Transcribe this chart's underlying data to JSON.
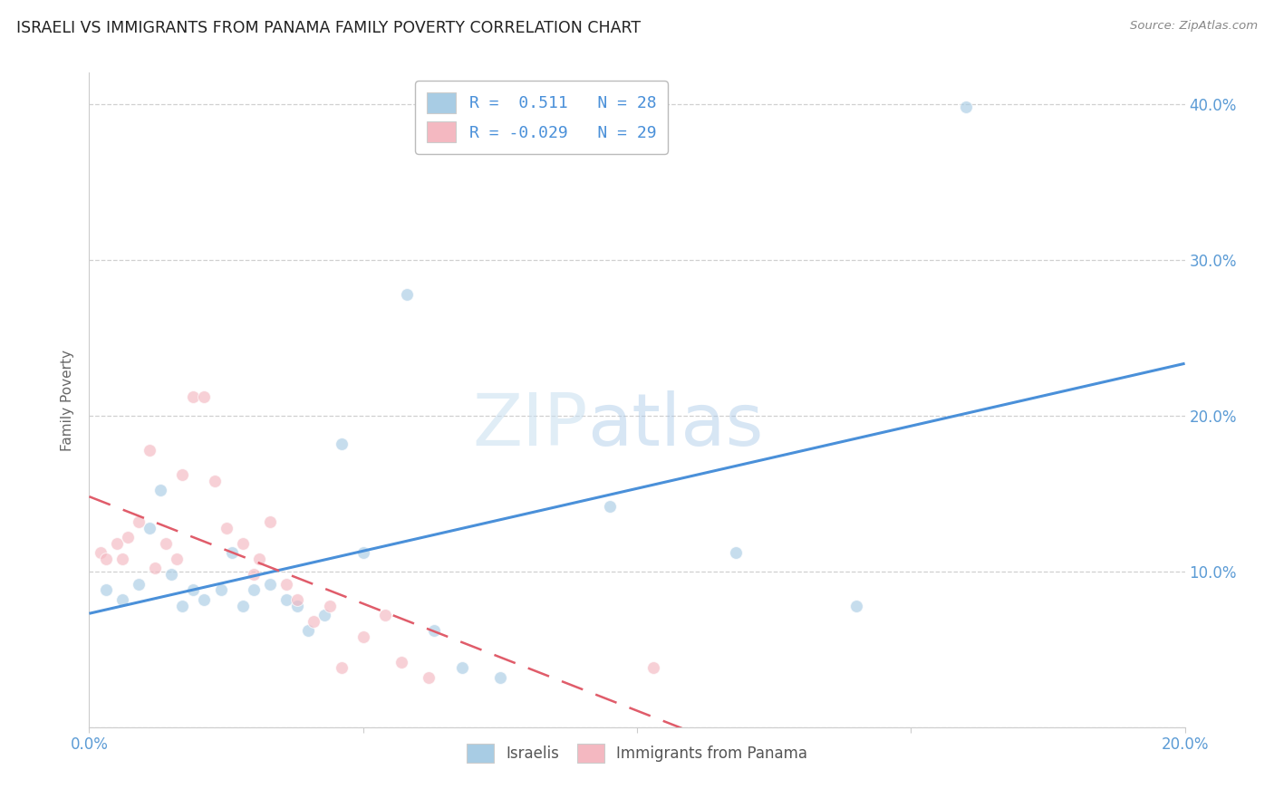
{
  "title": "ISRAELI VS IMMIGRANTS FROM PANAMA FAMILY POVERTY CORRELATION CHART",
  "source": "Source: ZipAtlas.com",
  "ylabel": "Family Poverty",
  "watermark_part1": "ZIP",
  "watermark_part2": "atlas",
  "xlim": [
    0.0,
    0.2
  ],
  "ylim": [
    0.0,
    0.42
  ],
  "xticks": [
    0.0,
    0.05,
    0.1,
    0.15,
    0.2
  ],
  "yticks": [
    0.0,
    0.1,
    0.2,
    0.3,
    0.4
  ],
  "legend_israelis_R": " 0.511",
  "legend_israelis_N": "28",
  "legend_panama_R": "-0.029",
  "legend_panama_N": "29",
  "israelis_color": "#a8cce4",
  "panama_color": "#f4b8c1",
  "line_israelis_color": "#4a90d9",
  "line_panama_color": "#e05c6a",
  "israelis_x": [
    0.003,
    0.006,
    0.009,
    0.011,
    0.013,
    0.015,
    0.017,
    0.019,
    0.021,
    0.024,
    0.026,
    0.028,
    0.03,
    0.033,
    0.036,
    0.038,
    0.04,
    0.043,
    0.046,
    0.05,
    0.058,
    0.063,
    0.068,
    0.075,
    0.095,
    0.118,
    0.14,
    0.16
  ],
  "israelis_y": [
    0.088,
    0.082,
    0.092,
    0.128,
    0.152,
    0.098,
    0.078,
    0.088,
    0.082,
    0.088,
    0.112,
    0.078,
    0.088,
    0.092,
    0.082,
    0.078,
    0.062,
    0.072,
    0.182,
    0.112,
    0.278,
    0.062,
    0.038,
    0.032,
    0.142,
    0.112,
    0.078,
    0.398
  ],
  "panama_x": [
    0.002,
    0.003,
    0.005,
    0.006,
    0.007,
    0.009,
    0.011,
    0.012,
    0.014,
    0.016,
    0.017,
    0.019,
    0.021,
    0.023,
    0.025,
    0.028,
    0.03,
    0.031,
    0.033,
    0.036,
    0.038,
    0.041,
    0.044,
    0.046,
    0.05,
    0.054,
    0.057,
    0.062,
    0.103
  ],
  "panama_y": [
    0.112,
    0.108,
    0.118,
    0.108,
    0.122,
    0.132,
    0.178,
    0.102,
    0.118,
    0.108,
    0.162,
    0.212,
    0.212,
    0.158,
    0.128,
    0.118,
    0.098,
    0.108,
    0.132,
    0.092,
    0.082,
    0.068,
    0.078,
    0.038,
    0.058,
    0.072,
    0.042,
    0.032,
    0.038
  ],
  "background_color": "#ffffff",
  "grid_color": "#d0d0d0",
  "title_color": "#222222",
  "tick_label_color": "#5b9bd5",
  "ylabel_color": "#666666",
  "marker_size": 100,
  "marker_alpha": 0.65
}
